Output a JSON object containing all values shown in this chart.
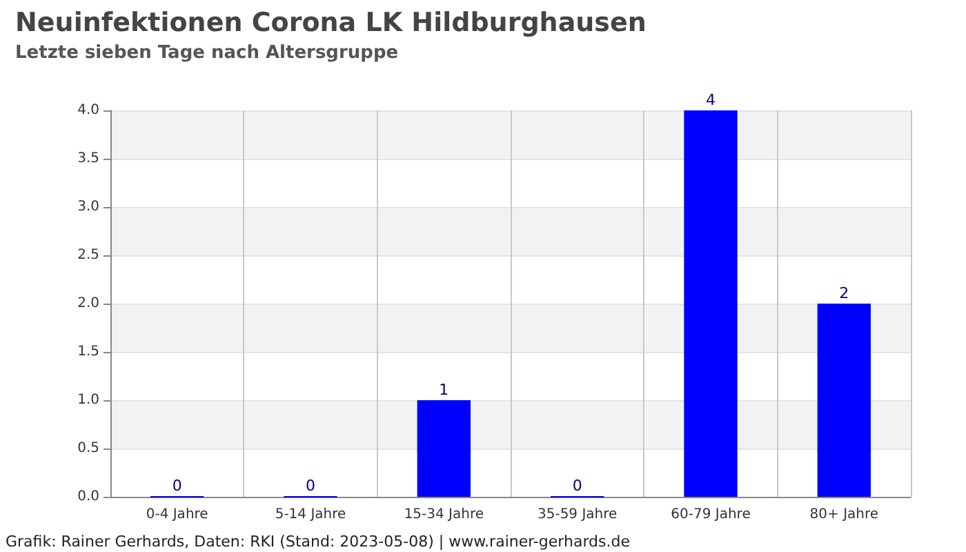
{
  "chart_data": {
    "type": "bar",
    "title": "Neuinfektionen Corona LK Hildburghausen",
    "subtitle": "Letzte sieben Tage nach Altersgruppe",
    "categories": [
      "0-4 Jahre",
      "5-14 Jahre",
      "15-34 Jahre",
      "35-59 Jahre",
      "60-79 Jahre",
      "80+ Jahre"
    ],
    "values": [
      0,
      0,
      1,
      0,
      4,
      2
    ],
    "color": "#0000ff",
    "ylim": [
      0,
      4
    ],
    "yticks": [
      {
        "value": 0,
        "label": "0.0"
      },
      {
        "value": 0.5,
        "label": "0.5"
      },
      {
        "value": 1,
        "label": "1.0"
      },
      {
        "value": 1.5,
        "label": "1.5"
      },
      {
        "value": 2,
        "label": "2.0"
      },
      {
        "value": 2.5,
        "label": "2.5"
      },
      {
        "value": 3,
        "label": "3.0"
      },
      {
        "value": 3.5,
        "label": "3.5"
      },
      {
        "value": 4,
        "label": "4.0"
      }
    ],
    "grid": true,
    "data_labels": true,
    "annotations": [
      "Grafik: Rainer Gerhards, Daten: RKI (Stand: 2023-05-08) | www.rainer-gerhards.de"
    ]
  }
}
